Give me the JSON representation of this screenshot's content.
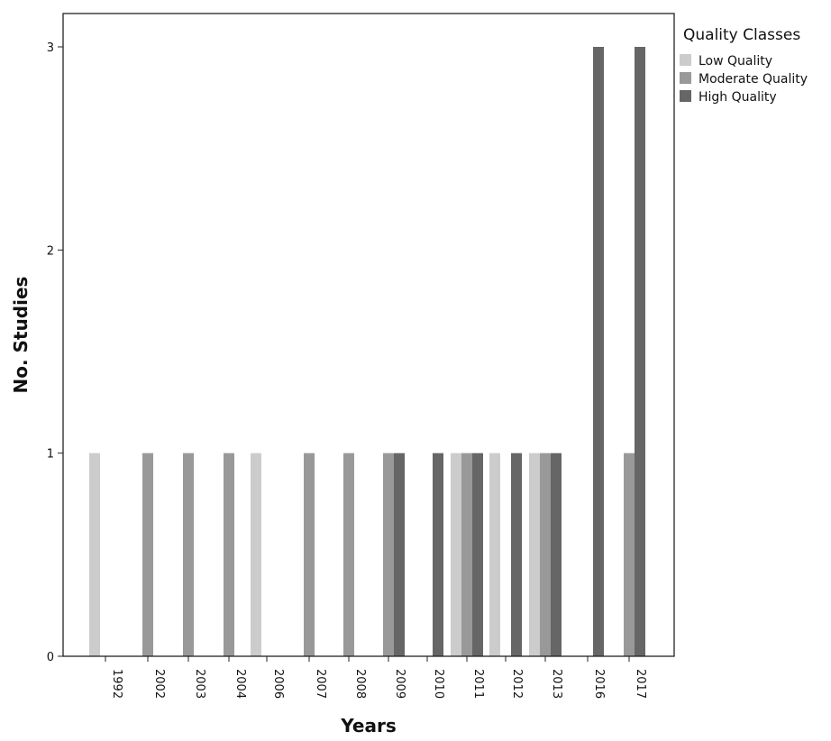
{
  "chart_data": {
    "type": "bar",
    "title": "",
    "xlabel": "Years",
    "ylabel": "No. Studies",
    "ylim": [
      0,
      3
    ],
    "yticks": [
      "0",
      "1",
      "2",
      "3"
    ],
    "grid": false,
    "legend_title": "Quality Classes",
    "legend_position": "top-right",
    "categories": [
      "1992",
      "2002",
      "2003",
      "2004",
      "2006",
      "2007",
      "2008",
      "2009",
      "2010",
      "2011",
      "2012",
      "2013",
      "2016",
      "2017"
    ],
    "series": [
      {
        "name": "Low Quality",
        "color": "#cccccc",
        "values": [
          1,
          0,
          0,
          0,
          1,
          0,
          0,
          0,
          0,
          1,
          1,
          1,
          0,
          0
        ]
      },
      {
        "name": "Moderate Quality",
        "color": "#999999",
        "values": [
          0,
          1,
          1,
          1,
          0,
          1,
          1,
          1,
          0,
          1,
          0,
          1,
          0,
          1
        ]
      },
      {
        "name": "High Quality",
        "color": "#666666",
        "values": [
          0,
          0,
          0,
          0,
          0,
          0,
          0,
          1,
          1,
          1,
          1,
          1,
          3,
          3
        ]
      }
    ]
  }
}
